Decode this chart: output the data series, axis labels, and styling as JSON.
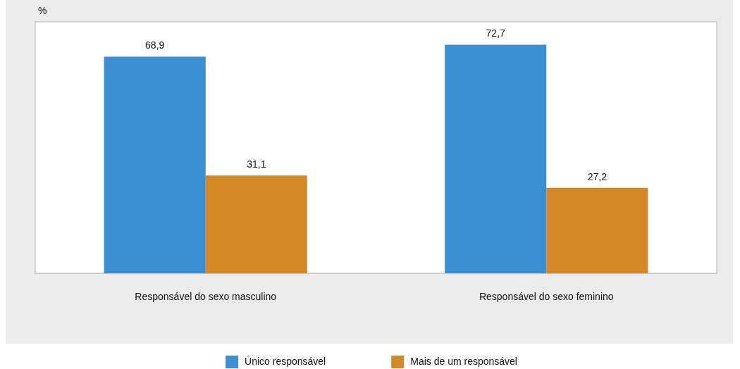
{
  "chart_data": {
    "type": "bar",
    "ylabel": "%",
    "categories": [
      "Responsável do sexo masculino",
      "Responsável do sexo feminino"
    ],
    "series": [
      {
        "name": "Único responsável",
        "color": "#3a8fd3",
        "values": [
          68.9,
          72.7
        ],
        "value_labels": [
          "68,9",
          "72,7"
        ]
      },
      {
        "name": "Mais de um responsável",
        "color": "#d58826",
        "values": [
          31.1,
          27.2
        ],
        "value_labels": [
          "31,1",
          "27,2"
        ]
      }
    ],
    "tick_labels": "x",
    "legend": "bottom",
    "grid": false
  }
}
